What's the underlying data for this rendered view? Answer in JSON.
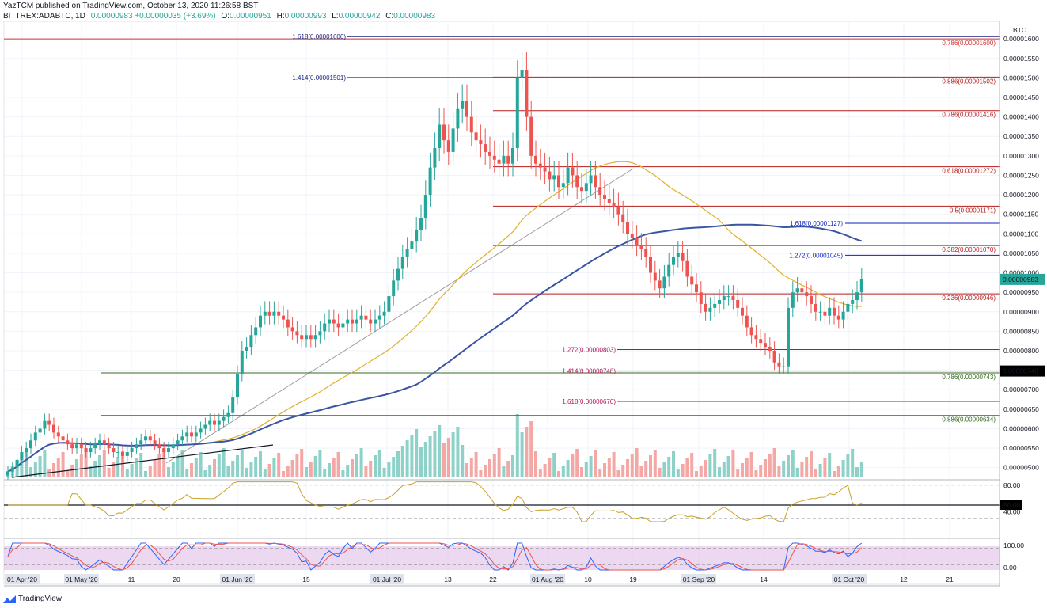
{
  "header": {
    "line1": "YazTCM published on TradingView.com, October 13, 2020 11:26:58 BST",
    "symbol": "BITTREX:ADABTC, 1D",
    "last": "0.00000983",
    "change": "+0.00000035 (+3.69%)",
    "o_label": "O:",
    "o": "0.00000951",
    "h_label": "H:",
    "h": "0.00000993",
    "l_label": "L:",
    "l": "0.00000942",
    "c_label": "C:",
    "c": "0.00000983"
  },
  "footer": {
    "brand": "TradingView"
  },
  "price_axis": {
    "unit": "BTC",
    "ticks": [
      "0.00001600",
      "0.00001550",
      "0.00001500",
      "0.00001450",
      "0.00001400",
      "0.00001350",
      "0.00001300",
      "0.00001250",
      "0.00001200",
      "0.00001150",
      "0.00001100",
      "0.00001050",
      "0.00001000",
      "0.00000950",
      "0.00000900",
      "0.00000850",
      "0.00000800",
      "0.00000750",
      "0.00000700",
      "0.00000650",
      "0.00000600",
      "0.00000550",
      "0.00000500"
    ],
    "last_price": "0.00000983",
    "marker_price": "0.00000748"
  },
  "rsi_axis": {
    "ticks": [
      "80.00",
      "50.00",
      "40.00"
    ]
  },
  "stoch_axis": {
    "ticks": [
      "100.00",
      "0.00"
    ]
  },
  "time_axis": [
    "01 Apr '20",
    "01 May '20",
    "11",
    "20",
    "01 Jun '20",
    "15",
    "01 Jul '20",
    "13",
    "22",
    "01 Aug '20",
    "10",
    "19",
    "01 Sep '20",
    "14",
    "01 Oct '20",
    "12",
    "21"
  ],
  "fib_levels": [
    {
      "text": "0.786(0.00001600)",
      "value": 1.6e-05,
      "color": "#d32f2f"
    },
    {
      "text": "0.886(0.00001502)",
      "value": 1.502e-05,
      "color": "#b71c1c"
    },
    {
      "text": "0.786(0.00001416)",
      "value": 1.416e-05,
      "color": "#b71c1c"
    },
    {
      "text": "0.618(0.00001272)",
      "value": 1.272e-05,
      "color": "#b71c1c"
    },
    {
      "text": "0.5(0.00001171)",
      "value": 1.171e-05,
      "color": "#b71c1c"
    },
    {
      "text": "0.382(0.00001070)",
      "value": 1.07e-05,
      "color": "#b71c1c"
    },
    {
      "text": "0.236(0.00000946)",
      "value": 9.46e-06,
      "color": "#b71c1c"
    },
    {
      "text": "0.786(0.00000743)",
      "value": 7.43e-06,
      "color": "#33691e"
    },
    {
      "text": "0.886(0.00000634)",
      "value": 6.34e-06,
      "color": "#33691e"
    }
  ],
  "ext_levels": [
    {
      "text": "1.618(0.00001606)",
      "value": 1.606e-05,
      "color": "#1a237e"
    },
    {
      "text": "1.414(0.00001501)",
      "value": 1.501e-05,
      "color": "#1a237e"
    },
    {
      "text": "1.618(0.00001127)",
      "value": 1.127e-05,
      "color": "#0d1fbf"
    },
    {
      "text": "1.272(0.00001045)",
      "value": 1.045e-05,
      "color": "#0d1fbf"
    },
    {
      "text": "1.272(0.00000803)",
      "value": 8.03e-06,
      "color": "#ad1457"
    },
    {
      "text": "1.414(0.00000748)",
      "value": 7.48e-06,
      "color": "#ad1457"
    },
    {
      "text": "1.618(0.00000670)",
      "value": 6.7e-06,
      "color": "#ad1457"
    }
  ],
  "colors": {
    "up": "#26a69a",
    "down": "#ef5350",
    "ma_fast": "#e0b129",
    "ma_slow": "#3a55a4",
    "rsi": "#c9a227",
    "stoch_k": "#2962ff",
    "stoch_d": "#ef5350",
    "stoch_band": "#e1bee7"
  },
  "chart_data": {
    "type": "candlestick",
    "series_name": "BITTREX:ADABTC, 1D",
    "y_unit": "BTC",
    "ylim": [
      4.75e-06,
      1.645e-05
    ],
    "start_date": "2020-04-01",
    "approx_closes": [
      4.9e-06,
      5e-06,
      5.2e-06,
      5.4e-06,
      5.5e-06,
      5.7e-06,
      5.9e-06,
      6e-06,
      6.2e-06,
      6.1e-06,
      5.9e-06,
      5.8e-06,
      5.7e-06,
      5.6e-06,
      5.5e-06,
      5.6e-06,
      5.5e-06,
      5.4e-06,
      5.5e-06,
      5.6e-06,
      5.7e-06,
      5.6e-06,
      5.5e-06,
      5.4e-06,
      5.4e-06,
      5.3e-06,
      5.4e-06,
      5.5e-06,
      5.6e-06,
      5.7e-06,
      5.8e-06,
      5.7e-06,
      5.6e-06,
      5.5e-06,
      5.4e-06,
      5.5e-06,
      5.6e-06,
      5.7e-06,
      5.8e-06,
      5.9e-06,
      5.8e-06,
      5.9e-06,
      6e-06,
      6.1e-06,
      6.2e-06,
      6.1e-06,
      6.2e-06,
      6.3e-06,
      6.4e-06,
      6.8e-06,
      7.4e-06,
      8e-06,
      8.1e-06,
      8.4e-06,
      8.6e-06,
      8.9e-06,
      9e-06,
      8.9e-06,
      9e-06,
      8.9e-06,
      8.8e-06,
      8.6e-06,
      8.5e-06,
      8.4e-06,
      8.3e-06,
      8.4e-06,
      8.3e-06,
      8.4e-06,
      8.5e-06,
      8.7e-06,
      8.8e-06,
      8.7e-06,
      8.6e-06,
      8.7e-06,
      8.8e-06,
      8.7e-06,
      8.8e-06,
      8.9e-06,
      8.8e-06,
      8.7e-06,
      8.8e-06,
      8.9e-06,
      9e-06,
      9.4e-06,
      9.8e-06,
      1.01e-05,
      1.04e-05,
      1.06e-05,
      1.08e-05,
      1.11e-05,
      1.14e-05,
      1.2e-05,
      1.27e-05,
      1.32e-05,
      1.38e-05,
      1.34e-05,
      1.31e-05,
      1.37e-05,
      1.42e-05,
      1.44e-05,
      1.4e-05,
      1.36e-05,
      1.34e-05,
      1.33e-05,
      1.31e-05,
      1.3e-05,
      1.29e-05,
      1.28e-05,
      1.3e-05,
      1.28e-05,
      1.32e-05,
      1.5e-05,
      1.52e-05,
      1.4e-05,
      1.3e-05,
      1.28e-05,
      1.27e-05,
      1.26e-05,
      1.24e-05,
      1.25e-05,
      1.22e-05,
      1.23e-05,
      1.27e-05,
      1.25e-05,
      1.22e-05,
      1.21e-05,
      1.23e-05,
      1.25e-05,
      1.22e-05,
      1.2e-05,
      1.19e-05,
      1.18e-05,
      1.17e-05,
      1.15e-05,
      1.13e-05,
      1.1e-05,
      1.09e-05,
      1.07e-05,
      1.06e-05,
      1.04e-05,
      1e-05,
      9.8e-06,
      9.6e-06,
      9.9e-06,
      1.02e-05,
      1.04e-05,
      1.05e-05,
      1.03e-05,
      9.9e-06,
      9.7e-06,
      9.5e-06,
      9.2e-06,
      9e-06,
      9.1e-06,
      9.2e-06,
      9.3e-06,
      9.4e-06,
      9.4e-06,
      9.3e-06,
      9.1e-06,
      8.9e-06,
      8.6e-06,
      8.4e-06,
      8.3e-06,
      8.2e-06,
      8.1e-06,
      8e-06,
      7.7e-06,
      7.6e-06,
      7.6e-06,
      9.1e-06,
      9.5e-06,
      9.6e-06,
      9.5e-06,
      9.4e-06,
      9.2e-06,
      9e-06,
      9e-06,
      8.9e-06,
      9.1e-06,
      8.9e-06,
      8.8e-06,
      9e-06,
      9.2e-06,
      9.3e-06,
      9.5e-06,
      9.83e-06
    ]
  }
}
